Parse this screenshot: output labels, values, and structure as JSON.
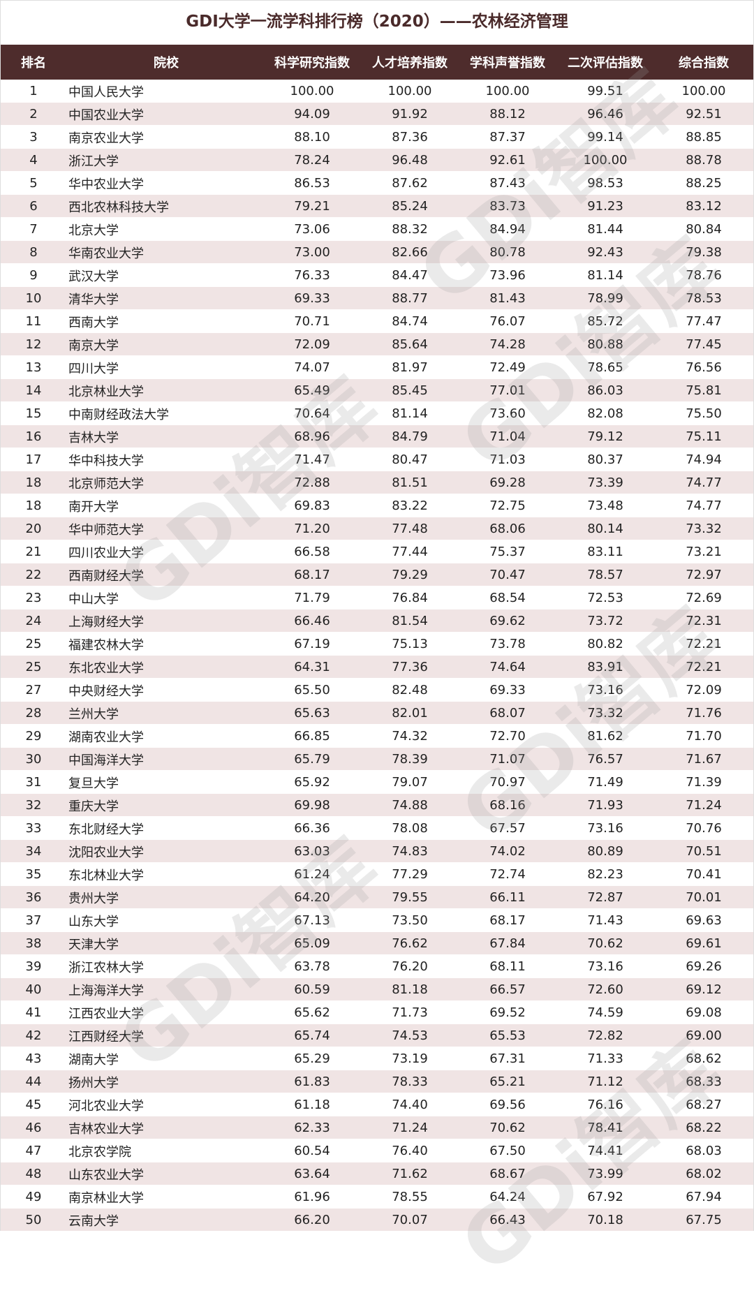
{
  "title": "GDI大学一流学科排行榜（2020）——农林经济管理",
  "watermark": "GDi智库",
  "colors": {
    "header_bg": "#4e2c2c",
    "stripe": "#f0e4e4",
    "title": "#4a2a2a"
  },
  "columns": [
    "排名",
    "院校",
    "科学研究指数",
    "人才培养指数",
    "学科声誉指数",
    "二次评估指数",
    "综合指数"
  ],
  "rows": [
    [
      "1",
      "中国人民大学",
      "100.00",
      "100.00",
      "100.00",
      "99.51",
      "100.00"
    ],
    [
      "2",
      "中国农业大学",
      "94.09",
      "91.92",
      "88.12",
      "96.46",
      "92.51"
    ],
    [
      "3",
      "南京农业大学",
      "88.10",
      "87.36",
      "87.37",
      "99.14",
      "88.85"
    ],
    [
      "4",
      "浙江大学",
      "78.24",
      "96.48",
      "92.61",
      "100.00",
      "88.78"
    ],
    [
      "5",
      "华中农业大学",
      "86.53",
      "87.62",
      "87.43",
      "98.53",
      "88.25"
    ],
    [
      "6",
      "西北农林科技大学",
      "79.21",
      "85.24",
      "83.73",
      "91.23",
      "83.12"
    ],
    [
      "7",
      "北京大学",
      "73.06",
      "88.32",
      "84.94",
      "81.44",
      "80.84"
    ],
    [
      "8",
      "华南农业大学",
      "73.00",
      "82.66",
      "80.78",
      "92.43",
      "79.38"
    ],
    [
      "9",
      "武汉大学",
      "76.33",
      "84.47",
      "73.96",
      "81.14",
      "78.76"
    ],
    [
      "10",
      "清华大学",
      "69.33",
      "88.77",
      "81.43",
      "78.99",
      "78.53"
    ],
    [
      "11",
      "西南大学",
      "70.71",
      "84.74",
      "76.07",
      "85.72",
      "77.47"
    ],
    [
      "12",
      "南京大学",
      "72.09",
      "85.64",
      "74.28",
      "80.88",
      "77.45"
    ],
    [
      "13",
      "四川大学",
      "74.07",
      "81.97",
      "72.49",
      "78.65",
      "76.56"
    ],
    [
      "14",
      "北京林业大学",
      "65.49",
      "85.45",
      "77.01",
      "86.03",
      "75.81"
    ],
    [
      "15",
      "中南财经政法大学",
      "70.64",
      "81.14",
      "73.60",
      "82.08",
      "75.50"
    ],
    [
      "16",
      "吉林大学",
      "68.96",
      "84.79",
      "71.04",
      "79.12",
      "75.11"
    ],
    [
      "17",
      "华中科技大学",
      "71.47",
      "80.47",
      "71.03",
      "80.37",
      "74.94"
    ],
    [
      "18",
      "北京师范大学",
      "72.88",
      "81.51",
      "69.28",
      "73.39",
      "74.77"
    ],
    [
      "18",
      "南开大学",
      "69.83",
      "83.22",
      "72.75",
      "73.48",
      "74.77"
    ],
    [
      "20",
      "华中师范大学",
      "71.20",
      "77.48",
      "68.06",
      "80.14",
      "73.32"
    ],
    [
      "21",
      "四川农业大学",
      "66.58",
      "77.44",
      "75.37",
      "83.11",
      "73.21"
    ],
    [
      "22",
      "西南财经大学",
      "68.17",
      "79.29",
      "70.47",
      "78.57",
      "72.97"
    ],
    [
      "23",
      "中山大学",
      "71.79",
      "76.84",
      "68.54",
      "72.53",
      "72.69"
    ],
    [
      "24",
      "上海财经大学",
      "66.46",
      "81.54",
      "69.62",
      "73.72",
      "72.31"
    ],
    [
      "25",
      "福建农林大学",
      "67.19",
      "75.13",
      "73.78",
      "80.82",
      "72.21"
    ],
    [
      "25",
      "东北农业大学",
      "64.31",
      "77.36",
      "74.64",
      "83.91",
      "72.21"
    ],
    [
      "27",
      "中央财经大学",
      "65.50",
      "82.48",
      "69.33",
      "73.16",
      "72.09"
    ],
    [
      "28",
      "兰州大学",
      "65.63",
      "82.01",
      "68.07",
      "73.32",
      "71.76"
    ],
    [
      "29",
      "湖南农业大学",
      "66.85",
      "74.32",
      "72.70",
      "81.62",
      "71.70"
    ],
    [
      "30",
      "中国海洋大学",
      "65.79",
      "78.39",
      "71.07",
      "76.57",
      "71.67"
    ],
    [
      "31",
      "复旦大学",
      "65.92",
      "79.07",
      "70.97",
      "71.49",
      "71.39"
    ],
    [
      "32",
      "重庆大学",
      "69.98",
      "74.88",
      "68.16",
      "71.93",
      "71.24"
    ],
    [
      "33",
      "东北财经大学",
      "66.36",
      "78.08",
      "67.57",
      "73.16",
      "70.76"
    ],
    [
      "34",
      "沈阳农业大学",
      "63.03",
      "74.83",
      "74.02",
      "80.89",
      "70.51"
    ],
    [
      "35",
      "东北林业大学",
      "61.24",
      "77.29",
      "72.74",
      "82.23",
      "70.41"
    ],
    [
      "36",
      "贵州大学",
      "64.20",
      "79.55",
      "66.11",
      "72.87",
      "70.01"
    ],
    [
      "37",
      "山东大学",
      "67.13",
      "73.50",
      "68.17",
      "71.43",
      "69.63"
    ],
    [
      "38",
      "天津大学",
      "65.09",
      "76.62",
      "67.84",
      "70.62",
      "69.61"
    ],
    [
      "39",
      "浙江农林大学",
      "63.78",
      "76.20",
      "68.11",
      "73.16",
      "69.26"
    ],
    [
      "40",
      "上海海洋大学",
      "60.59",
      "81.18",
      "66.57",
      "72.60",
      "69.12"
    ],
    [
      "41",
      "江西农业大学",
      "65.62",
      "71.73",
      "69.52",
      "74.59",
      "69.08"
    ],
    [
      "42",
      "江西财经大学",
      "65.74",
      "74.53",
      "65.53",
      "72.82",
      "69.00"
    ],
    [
      "43",
      "湖南大学",
      "65.29",
      "73.19",
      "67.31",
      "71.33",
      "68.62"
    ],
    [
      "44",
      "扬州大学",
      "61.83",
      "78.33",
      "65.21",
      "71.12",
      "68.33"
    ],
    [
      "45",
      "河北农业大学",
      "61.18",
      "74.40",
      "69.56",
      "76.16",
      "68.27"
    ],
    [
      "46",
      "吉林农业大学",
      "62.33",
      "71.24",
      "70.62",
      "78.41",
      "68.22"
    ],
    [
      "47",
      "北京农学院",
      "60.54",
      "76.40",
      "67.50",
      "74.41",
      "68.03"
    ],
    [
      "48",
      "山东农业大学",
      "63.64",
      "71.62",
      "68.67",
      "73.99",
      "68.02"
    ],
    [
      "49",
      "南京林业大学",
      "61.96",
      "78.55",
      "64.24",
      "67.92",
      "67.94"
    ],
    [
      "50",
      "云南大学",
      "66.20",
      "70.07",
      "66.43",
      "70.18",
      "67.75"
    ]
  ]
}
